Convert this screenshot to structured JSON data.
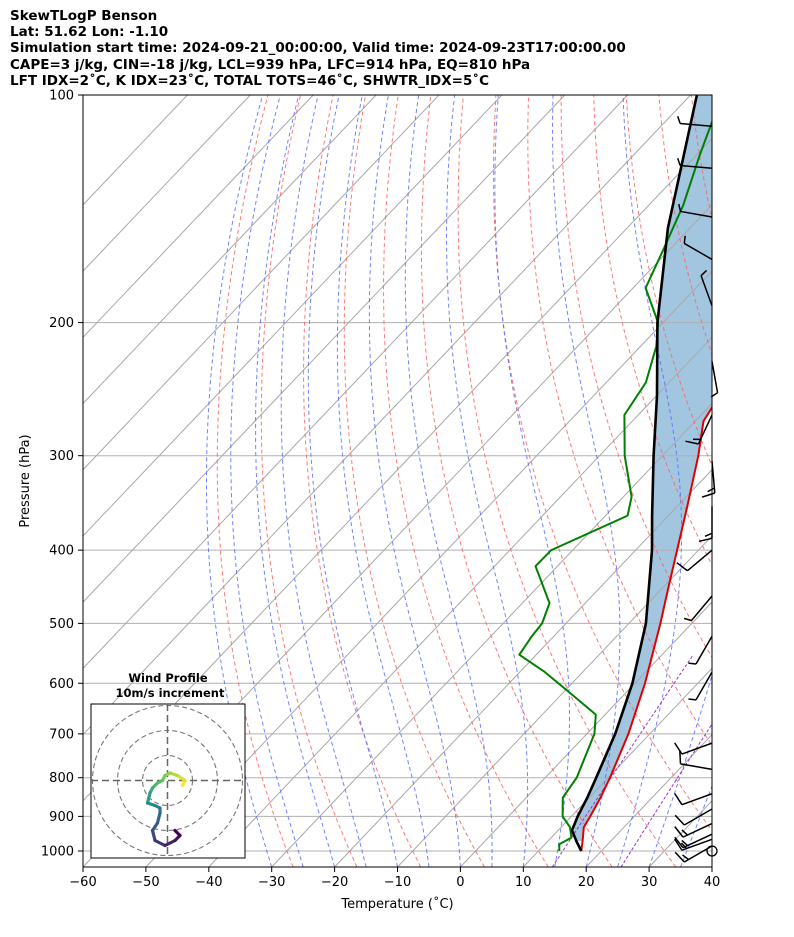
{
  "header": {
    "line1": "SkewTLogP Benson",
    "line2": "Lat: 51.62   Lon: -1.10",
    "line3": "Simulation start time: 2024-09-21_00:00:00, Valid time: 2024-09-23T17:00:00.00",
    "line4": "CAPE=3 j/kg, CIN=-18 j/kg, LCL=939 hPa, LFC=914 hPa, EQ=810 hPa",
    "line5": "LFT IDX=2˚C, K IDX=23˚C, TOTAL TOTS=46˚C, SHWTR_IDX=5˚C"
  },
  "colors": {
    "temperature": "#e00000",
    "dewpoint": "#008000",
    "parcel": "#000000",
    "cape_fill": "#a3c6e0",
    "dry_adiabat": "#ff6060",
    "moist_adiabat": "#5a6cff",
    "mixing_ratio": "#9933cc",
    "isotherm": "#a8a8a8"
  },
  "chart_data": [
    {
      "type": "line",
      "subtype": "skew-t log-p",
      "xlabel": "Temperature (˚C)",
      "ylabel": "Pressure (hPa)",
      "x_ticks": [
        -60,
        -50,
        -40,
        -30,
        -20,
        -10,
        0,
        10,
        20,
        30,
        40
      ],
      "x_tick_labels": [
        "−60",
        "−50",
        "−40",
        "−30",
        "−20",
        "−10",
        "0",
        "10",
        "20",
        "30",
        "40"
      ],
      "y_ticks": [
        1000,
        900,
        800,
        700,
        600,
        500,
        400,
        300,
        200,
        100
      ],
      "y_tick_labels": [
        "1000",
        "900",
        "800",
        "700",
        "600",
        "500",
        "400",
        "300",
        "200",
        "100"
      ],
      "xlim": [
        -60,
        40
      ],
      "ylim": [
        1050,
        100
      ],
      "yscale": "log",
      "grid": true,
      "series": [
        {
          "key": "temperature",
          "pressure": [
            1000,
            970,
            930,
            900,
            850,
            800,
            700,
            600,
            500,
            450,
            400,
            350,
            300,
            270,
            250,
            230,
            215,
            200,
            180,
            160,
            140,
            130,
            120,
            110,
            105,
            100
          ],
          "values": [
            16.8,
            15.5,
            13.6,
            13.0,
            11.8,
            10.3,
            6.6,
            1.6,
            -5.0,
            -9.0,
            -13.4,
            -18.4,
            -24.3,
            -28.7,
            -30.0,
            -32.5,
            -35.5,
            -37.6,
            -39.8,
            -41.8,
            -43.5,
            -45.5,
            -46.8,
            -49.3,
            -51.0,
            -53.4
          ]
        },
        {
          "key": "dewpoint",
          "pressure": [
            1000,
            980,
            960,
            930,
            900,
            850,
            800,
            700,
            660,
            620,
            580,
            550,
            520,
            500,
            470,
            420,
            400,
            360,
            340,
            300,
            265,
            240,
            215,
            200,
            180,
            160,
            140,
            120,
            100
          ],
          "values": [
            13.3,
            12.3,
            13.2,
            11.4,
            8.6,
            5.8,
            5.0,
            1.2,
            -1.5,
            -8.5,
            -16.0,
            -22.7,
            -23.5,
            -23.8,
            -25.7,
            -33.5,
            -33.4,
            -26.5,
            -28.7,
            -36.0,
            -42.2,
            -43.7,
            -47.5,
            -50.8,
            -58.0,
            -61.0,
            -64.5,
            -69.5,
            -75.0
          ]
        },
        {
          "key": "parcel",
          "pressure": [
            1000,
            970,
            939,
            900,
            850,
            800,
            700,
            600,
            500,
            400,
            360,
            300,
            250,
            200,
            150,
            100
          ],
          "values": [
            16.8,
            14.5,
            12.2,
            11.0,
            9.7,
            8.1,
            4.5,
            -0.4,
            -7.3,
            -17.4,
            -22.6,
            -31.4,
            -39.9,
            -50.9,
            -63.5,
            -79.0
          ]
        }
      ],
      "wind_barbs": [
        {
          "p": 985,
          "speed_kt": 15,
          "dir": 240
        },
        {
          "p": 965,
          "speed_kt": 15,
          "dir": 250
        },
        {
          "p": 950,
          "speed_kt": 15,
          "dir": 245
        },
        {
          "p": 920,
          "speed_kt": 15,
          "dir": 245
        },
        {
          "p": 880,
          "speed_kt": 10,
          "dir": 240
        },
        {
          "p": 840,
          "speed_kt": 10,
          "dir": 250
        },
        {
          "p": 780,
          "speed_kt": 10,
          "dir": 280
        },
        {
          "p": 720,
          "speed_kt": 10,
          "dir": 250
        },
        {
          "p": 580,
          "speed_kt": 5,
          "dir": 210
        },
        {
          "p": 520,
          "speed_kt": 5,
          "dir": 210
        },
        {
          "p": 460,
          "speed_kt": 5,
          "dir": 220
        },
        {
          "p": 400,
          "speed_kt": 10,
          "dir": 230
        },
        {
          "p": 350,
          "speed_kt": 15,
          "dir": 180
        },
        {
          "p": 305,
          "speed_kt": 15,
          "dir": 175
        },
        {
          "p": 265,
          "speed_kt": 15,
          "dir": 205
        },
        {
          "p": 225,
          "speed_kt": 5,
          "dir": 170
        },
        {
          "p": 190,
          "speed_kt": 5,
          "dir": 340
        },
        {
          "p": 165,
          "speed_kt": 5,
          "dir": 300
        },
        {
          "p": 145,
          "speed_kt": 5,
          "dir": 280
        },
        {
          "p": 125,
          "speed_kt": 5,
          "dir": 275
        },
        {
          "p": 110,
          "speed_kt": 5,
          "dir": 275
        }
      ],
      "calm_marker_pressure": 1000
    },
    {
      "type": "line",
      "subtype": "hodograph",
      "title": "Wind Profile",
      "subtitle": "10m/s increment",
      "rings_ms": [
        10,
        20,
        30
      ],
      "u": [
        6,
        7,
        4,
        1,
        -1,
        -2,
        -4,
        -6,
        -7,
        -8,
        -5,
        -3,
        -3,
        -4,
        -6,
        -5,
        -1,
        3,
        5,
        3
      ],
      "v": [
        -2,
        0,
        2,
        3,
        2,
        0,
        -1,
        -3,
        -5,
        -9,
        -10,
        -11,
        -13,
        -17,
        -20,
        -24,
        -26,
        -24,
        -22,
        -20
      ]
    }
  ]
}
